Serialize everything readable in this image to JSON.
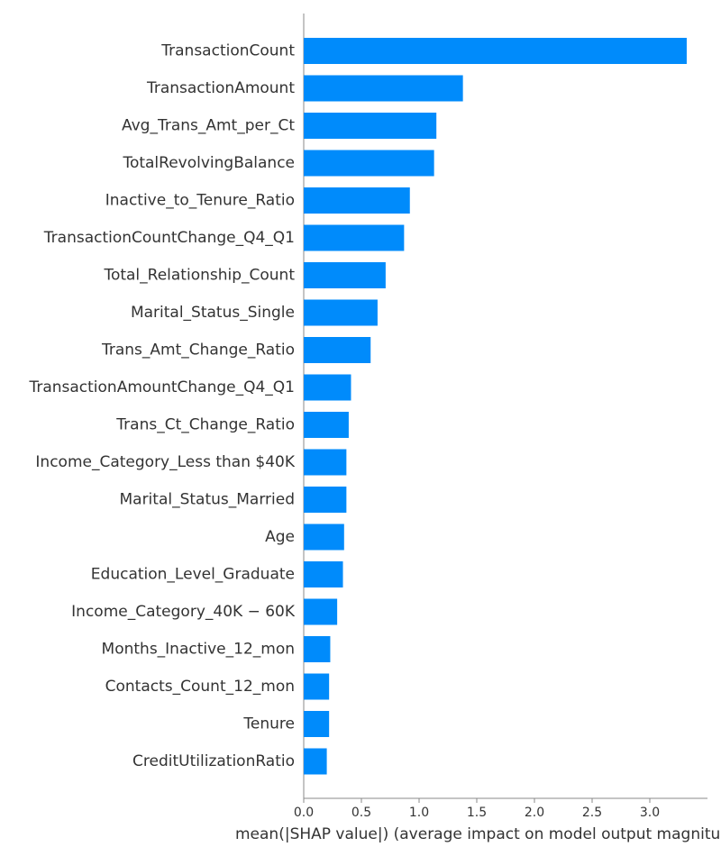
{
  "chart_data": {
    "type": "bar",
    "orientation": "horizontal",
    "categories": [
      "TransactionCount",
      "TransactionAmount",
      "Avg_Trans_Amt_per_Ct",
      "TotalRevolvingBalance",
      "Inactive_to_Tenure_Ratio",
      "TransactionCountChange_Q4_Q1",
      "Total_Relationship_Count",
      "Marital_Status_Single",
      "Trans_Amt_Change_Ratio",
      "TransactionAmountChange_Q4_Q1",
      "Trans_Ct_Change_Ratio",
      "Income_Category_Less than $40K",
      "Marital_Status_Married",
      "Age",
      "Education_Level_Graduate",
      "Income_Category_40K − 60K",
      "Months_Inactive_12_mon",
      "Contacts_Count_12_mon",
      "Tenure",
      "CreditUtilizationRatio"
    ],
    "values": [
      3.32,
      1.38,
      1.15,
      1.13,
      0.92,
      0.87,
      0.71,
      0.64,
      0.58,
      0.41,
      0.39,
      0.37,
      0.37,
      0.35,
      0.34,
      0.29,
      0.23,
      0.22,
      0.22,
      0.2
    ],
    "title": "",
    "xlabel": "mean(|SHAP value|) (average impact on model output magnitude)",
    "ylabel": "",
    "xlim": [
      0,
      3.5
    ],
    "xticks": [
      "0.0",
      "0.5",
      "1.0",
      "1.5",
      "2.0",
      "2.5",
      "3.0"
    ],
    "grid": false,
    "legend": "none",
    "bar_color": "#008bfb",
    "axis_color": "#888888",
    "text_color": "#333333"
  }
}
